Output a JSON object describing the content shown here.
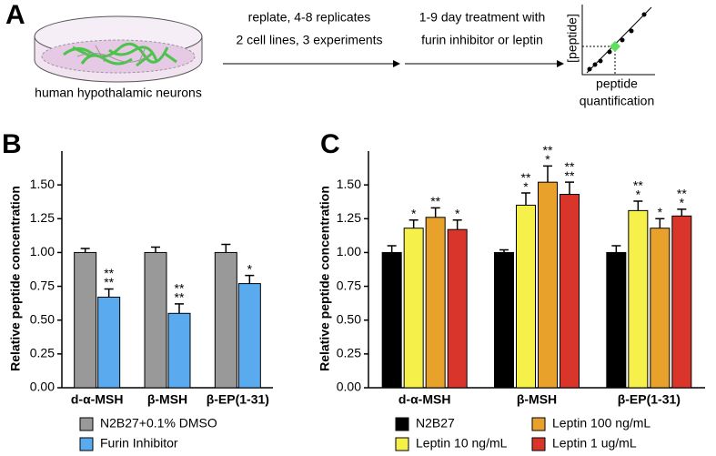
{
  "panel_labels": [
    "A",
    "B",
    "C"
  ],
  "panel_a": {
    "dish_caption": "human hypothalamic neurons",
    "step1": [
      "replate, 4-8 replicates",
      "2 cell lines, 3 experiments"
    ],
    "step2": [
      "1-9 day treatment with",
      "furin inhibitor or leptin"
    ],
    "plot_ylabel": "[peptide]",
    "plot_xlabel": [
      "peptide",
      "quantification"
    ]
  },
  "chart_data": [
    {
      "type": "bar",
      "ylabel": "Relative peptide concentration",
      "categories": [
        "d-α-MSH",
        "β-MSH",
        "β-EP(1-31)"
      ],
      "series": [
        {
          "name": "N2B27+0.1% DMSO",
          "color": "#999999",
          "values": [
            1.0,
            1.0,
            1.0
          ],
          "errors": [
            0.03,
            0.04,
            0.06
          ]
        },
        {
          "name": "Furin Inhibitor",
          "color": "#5aaaf0",
          "values": [
            0.67,
            0.55,
            0.77
          ],
          "errors": [
            0.06,
            0.07,
            0.06
          ],
          "significance": [
            [
              "**",
              "**"
            ],
            [
              "**",
              "**"
            ],
            [
              "*"
            ]
          ]
        }
      ],
      "ylim": [
        0,
        1.75
      ],
      "yticks": [
        {
          "value": 0,
          "label": "0.00"
        },
        {
          "value": 0.25,
          "label": "0.25"
        },
        {
          "value": 0.5,
          "label": "0.50"
        },
        {
          "value": 0.75,
          "label": "0.75"
        },
        {
          "value": 1,
          "label": "1.00"
        },
        {
          "value": 1.25,
          "label": "1.25"
        },
        {
          "value": 1.5,
          "label": "1.50"
        }
      ]
    },
    {
      "type": "bar",
      "ylabel": "Relative peptide concentration",
      "categories": [
        "d-α-MSH",
        "β-MSH",
        "β-EP(1-31)"
      ],
      "series": [
        {
          "name": "N2B27",
          "color": "#000000",
          "values": [
            1.0,
            1.0,
            1.0
          ],
          "errors": [
            0.05,
            0.02,
            0.05
          ]
        },
        {
          "name": "Leptin 10 ng/mL",
          "color": "#f5f04a",
          "values": [
            1.18,
            1.35,
            1.31
          ],
          "errors": [
            0.06,
            0.09,
            0.07
          ],
          "significance": [
            [
              "*"
            ],
            [
              "**",
              "*"
            ],
            [
              "**",
              "*"
            ]
          ]
        },
        {
          "name": "Leptin 100 ng/mL",
          "color": "#e8a22b",
          "values": [
            1.26,
            1.52,
            1.18
          ],
          "errors": [
            0.07,
            0.12,
            0.07
          ],
          "significance": [
            [
              "**"
            ],
            [
              "**",
              "*"
            ],
            [
              "*"
            ]
          ]
        },
        {
          "name": "Leptin 1 ug/mL",
          "color": "#d9352a",
          "values": [
            1.17,
            1.43,
            1.27
          ],
          "errors": [
            0.07,
            0.09,
            0.05
          ],
          "significance": [
            [
              "*"
            ],
            [
              "**",
              "**"
            ],
            [
              "**",
              "*"
            ]
          ]
        }
      ],
      "ylim": [
        0,
        1.75
      ],
      "yticks": [
        {
          "value": 0,
          "label": "0.00"
        },
        {
          "value": 0.25,
          "label": "0.25"
        },
        {
          "value": 0.5,
          "label": "0.50"
        },
        {
          "value": 0.75,
          "label": "0.75"
        },
        {
          "value": 1,
          "label": "1.00"
        },
        {
          "value": 1.25,
          "label": "1.25"
        },
        {
          "value": 1.5,
          "label": "1.50"
        }
      ]
    }
  ]
}
